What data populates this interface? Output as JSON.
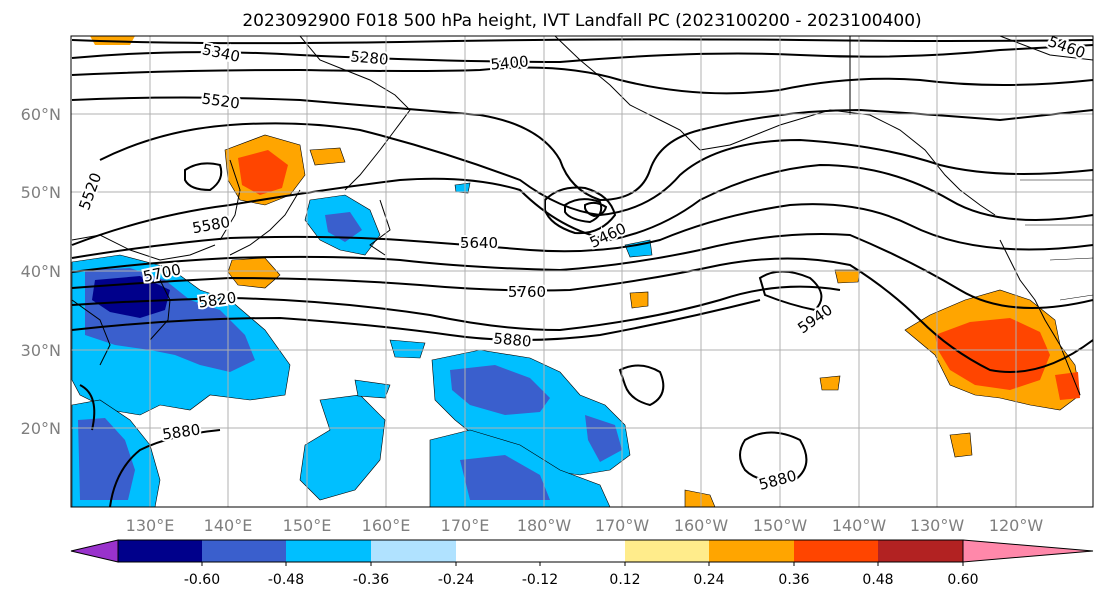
{
  "title": "2023092900 F018 500 hPa height, IVT Landfall PC (2023100200 - 2023100400)",
  "map": {
    "lat_labels": [
      "60°N",
      "50°N",
      "40°N",
      "30°N",
      "20°N"
    ],
    "lon_labels": [
      "130°E",
      "140°E",
      "150°E",
      "160°E",
      "170°E",
      "180°W",
      "170°W",
      "160°W",
      "150°W",
      "140°W",
      "130°W",
      "120°W"
    ],
    "contour_labels": [
      "5340",
      "5280",
      "5400",
      "5460",
      "5520",
      "5520",
      "5580",
      "5640",
      "5460",
      "5700",
      "5760",
      "5820",
      "5940",
      "5880",
      "5880",
      "5880"
    ]
  },
  "colorbar": {
    "tick_labels": [
      "-0.60",
      "-0.48",
      "-0.36",
      "-0.24",
      "-0.12",
      "0.12",
      "0.24",
      "0.36",
      "0.48",
      "0.60"
    ],
    "under_color": "#9932cc",
    "over_color": "#ff88aa",
    "colors": [
      "#00008b",
      "#3a5fcd",
      "#00bfff",
      "#b0e2ff",
      "#ffffff",
      "#ffffff",
      "#ffec8b",
      "#ffa500",
      "#ff4500",
      "#b22222"
    ]
  }
}
